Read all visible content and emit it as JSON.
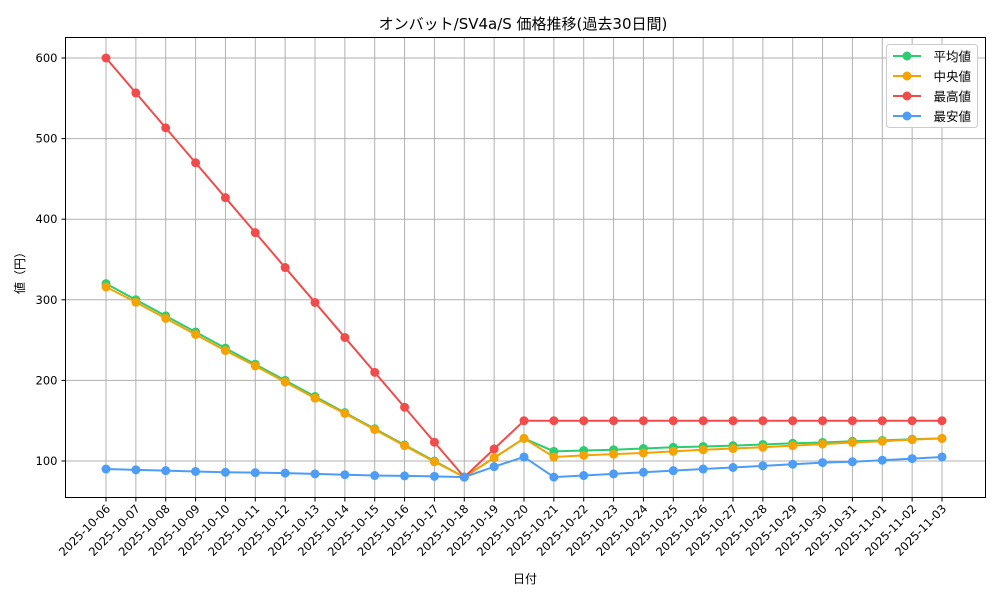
{
  "chart_data": {
    "type": "line",
    "title": "オンバット/SV4a/S 価格推移(過去30日間)",
    "xlabel": "日付",
    "ylabel": "値（円）",
    "ylim": [
      55,
      625
    ],
    "yticks": [
      100,
      200,
      300,
      400,
      500,
      600
    ],
    "grid": true,
    "legend_position": "upper right",
    "x": [
      "2025-10-06",
      "2025-10-07",
      "2025-10-08",
      "2025-10-09",
      "2025-10-10",
      "2025-10-11",
      "2025-10-12",
      "2025-10-13",
      "2025-10-14",
      "2025-10-15",
      "2025-10-16",
      "2025-10-17",
      "2025-10-18",
      "2025-10-19",
      "2025-10-20",
      "2025-10-21",
      "2025-10-22",
      "2025-10-23",
      "2025-10-24",
      "2025-10-25",
      "2025-10-26",
      "2025-10-27",
      "2025-10-28",
      "2025-10-29",
      "2025-10-30",
      "2025-10-31",
      "2025-11-01",
      "2025-11-02",
      "2025-11-03"
    ],
    "series": [
      {
        "name": "平均値",
        "color": "#2ecc71",
        "values": [
          320,
          300,
          280,
          260,
          240,
          220,
          200,
          180,
          160,
          140,
          120,
          100,
          80,
          104,
          128,
          112,
          113,
          114,
          115.5,
          117,
          118,
          119,
          120.5,
          122,
          123,
          124.5,
          125.5,
          127,
          128
        ]
      },
      {
        "name": "中央値",
        "color": "#f5a300",
        "values": [
          316,
          297,
          277,
          257,
          237,
          218,
          198,
          178,
          159,
          139,
          119,
          99,
          80,
          104,
          128,
          105,
          107,
          108.5,
          110,
          112,
          114,
          115.5,
          117,
          119,
          121,
          123,
          124.5,
          126.5,
          128
        ]
      },
      {
        "name": "最高値",
        "color": "#f24b4b",
        "values": [
          600,
          556.7,
          513.3,
          470,
          426.7,
          383.3,
          340,
          296.7,
          253.3,
          210,
          166.7,
          123.3,
          80,
          115,
          150,
          150,
          150,
          150,
          150,
          150,
          150,
          150,
          150,
          150,
          150,
          150,
          150,
          150,
          150
        ]
      },
      {
        "name": "最安値",
        "color": "#4d9cf5",
        "values": [
          90,
          89,
          88,
          87,
          86,
          85.5,
          85,
          84,
          83,
          82,
          81.5,
          81,
          80,
          93,
          105,
          80,
          82,
          84,
          86,
          88,
          90,
          92,
          94,
          96,
          98,
          99,
          101,
          103,
          105
        ]
      }
    ]
  }
}
